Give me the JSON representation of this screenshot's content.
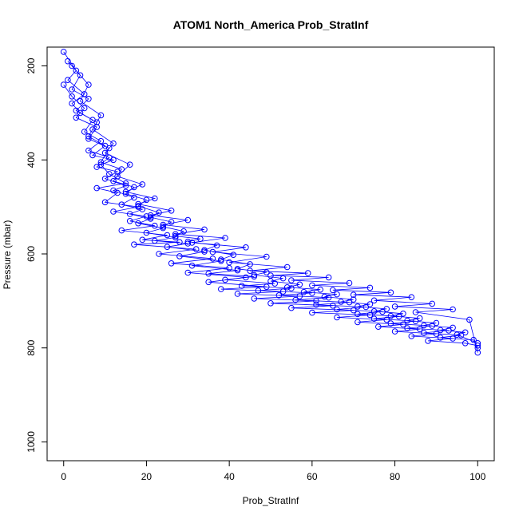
{
  "chart_data": {
    "type": "scatter",
    "title": "ATOM1 North_America Prob_StratInf",
    "xlabel": "Prob_StratInf",
    "ylabel": "Pressure (mbar)",
    "xlim": [
      -4,
      104
    ],
    "ylim": [
      1040,
      160
    ],
    "y_reversed": true,
    "xticks": [
      0,
      20,
      40,
      60,
      80,
      100
    ],
    "yticks": [
      200,
      400,
      600,
      800,
      1000
    ],
    "grid": false,
    "marker": "open-circle",
    "connected": true,
    "colors": {
      "series": "#0000ff",
      "axes": "#000000",
      "background": "#ffffff"
    },
    "series": [
      {
        "x": [
          0,
          3,
          1,
          5,
          2,
          4,
          8,
          6,
          10,
          7,
          12,
          9,
          11,
          15,
          8,
          13,
          10,
          18,
          12,
          20,
          16,
          22,
          14,
          25,
          19,
          28,
          17,
          32,
          23,
          36,
          26,
          40,
          30,
          44,
          35,
          49,
          38,
          53,
          42,
          57,
          46,
          61,
          50,
          65,
          55,
          70,
          60,
          74,
          66,
          78,
          71,
          82,
          76,
          86,
          80,
          90,
          84,
          94,
          88,
          97,
          100
        ],
        "y": [
          170,
          210,
          230,
          260,
          280,
          300,
          320,
          350,
          370,
          390,
          400,
          410,
          430,
          450,
          460,
          470,
          490,
          500,
          510,
          520,
          530,
          540,
          550,
          560,
          570,
          575,
          580,
          590,
          600,
          610,
          620,
          630,
          640,
          650,
          660,
          670,
          675,
          680,
          685,
          690,
          695,
          700,
          705,
          710,
          715,
          720,
          725,
          730,
          735,
          740,
          745,
          750,
          755,
          760,
          765,
          770,
          775,
          780,
          785,
          790,
          795
        ]
      },
      {
        "x": [
          1,
          4,
          2,
          6,
          3,
          7,
          5,
          9,
          6,
          11,
          8,
          13,
          10,
          15,
          12,
          17,
          14,
          19,
          16,
          21,
          18,
          24,
          20,
          27,
          22,
          30,
          25,
          34,
          28,
          38,
          31,
          42,
          35,
          46,
          39,
          51,
          43,
          55,
          47,
          60,
          52,
          64,
          56,
          69,
          61,
          73,
          66,
          77,
          71,
          81,
          75,
          85,
          79,
          89,
          83,
          93,
          87,
          96,
          91,
          99,
          100
        ],
        "y": [
          190,
          220,
          250,
          270,
          295,
          315,
          340,
          360,
          380,
          395,
          415,
          425,
          440,
          455,
          465,
          480,
          495,
          505,
          515,
          525,
          535,
          545,
          555,
          565,
          572,
          578,
          585,
          595,
          605,
          615,
          625,
          635,
          642,
          648,
          655,
          663,
          668,
          673,
          678,
          683,
          688,
          693,
          698,
          703,
          708,
          713,
          718,
          723,
          728,
          733,
          738,
          743,
          748,
          753,
          758,
          763,
          768,
          773,
          778,
          783,
          800
        ]
      },
      {
        "x": [
          0,
          2,
          5,
          3,
          8,
          6,
          11,
          9,
          14,
          12,
          17,
          15,
          20,
          18,
          23,
          21,
          26,
          24,
          29,
          27,
          33,
          30,
          37,
          34,
          41,
          38,
          45,
          42,
          49,
          46,
          53,
          50,
          57,
          54,
          62,
          58,
          66,
          63,
          70,
          67,
          74,
          71,
          78,
          75,
          82,
          79,
          86,
          83,
          90,
          87,
          94,
          91,
          97,
          95,
          100
        ],
        "y": [
          240,
          265,
          290,
          310,
          330,
          355,
          375,
          405,
          420,
          445,
          458,
          472,
          485,
          498,
          512,
          522,
          532,
          542,
          552,
          562,
          568,
          574,
          582,
          592,
          602,
          612,
          622,
          632,
          639,
          645,
          652,
          658,
          665,
          671,
          676,
          681,
          686,
          691,
          697,
          702,
          707,
          712,
          717,
          722,
          727,
          732,
          737,
          742,
          747,
          752,
          757,
          762,
          767,
          772,
          790
        ]
      },
      {
        "x": [
          2,
          6,
          4,
          9,
          7,
          12,
          10,
          16,
          13,
          19,
          15,
          22,
          18,
          26,
          21,
          30,
          24,
          34,
          27,
          39,
          31,
          44,
          36,
          49,
          40,
          54,
          45,
          59,
          50,
          64,
          55,
          69,
          60,
          74,
          65,
          79,
          70,
          84,
          75,
          89,
          80,
          94,
          85,
          98,
          100
        ],
        "y": [
          200,
          240,
          275,
          305,
          335,
          365,
          385,
          410,
          435,
          452,
          468,
          482,
          494,
          508,
          518,
          528,
          538,
          548,
          558,
          566,
          576,
          586,
          596,
          606,
          618,
          628,
          636,
          641,
          646,
          650,
          656,
          662,
          667,
          672,
          677,
          682,
          687,
          692,
          699,
          706,
          712,
          718,
          724,
          740,
          810
        ]
      }
    ]
  }
}
